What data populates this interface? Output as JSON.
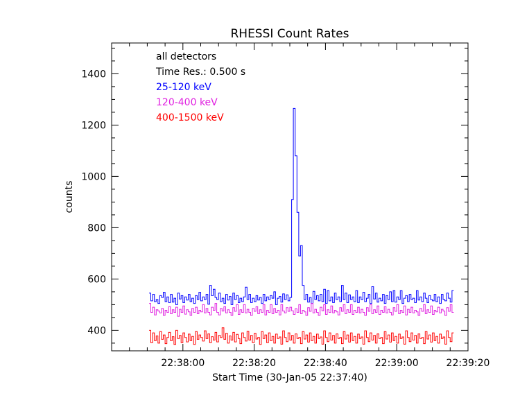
{
  "chart_data": {
    "type": "line",
    "title": "RHESSI Count Rates",
    "xlabel": "Start Time (30-Jan-05 22:37:40)",
    "ylabel": "counts",
    "x_unit": "seconds since 30-Jan-05 22:37:40",
    "xlim": [
      0,
      100
    ],
    "ylim": [
      320,
      1520
    ],
    "x_ticks": [
      {
        "x": 20,
        "label": "22:38:00"
      },
      {
        "x": 40,
        "label": "22:38:20"
      },
      {
        "x": 60,
        "label": "22:38:40"
      },
      {
        "x": 80,
        "label": "22:39:00"
      },
      {
        "x": 100,
        "label": "22:39:20"
      }
    ],
    "y_ticks": [
      400,
      600,
      800,
      1000,
      1200,
      1400
    ],
    "annotations": [
      "all detectors",
      "Time Res.: 0.500 s"
    ],
    "legend_position": "top-left",
    "grid": false,
    "step": 0.5,
    "series": [
      {
        "name": "25-120 keV",
        "color": "#0000ff",
        "x_start": 10.5,
        "values": [
          545,
          515,
          540,
          512,
          520,
          505,
          535,
          528,
          548,
          512,
          530,
          508,
          540,
          510,
          525,
          500,
          545,
          522,
          535,
          508,
          530,
          518,
          540,
          512,
          525,
          505,
          535,
          520,
          548,
          515,
          530,
          520,
          540,
          502,
          575,
          535,
          560,
          528,
          520,
          545,
          512,
          525,
          505,
          540,
          518,
          532,
          500,
          545,
          520,
          535,
          508,
          525,
          512,
          530,
          568,
          520,
          540,
          508,
          525,
          512,
          535,
          518,
          528,
          505,
          540,
          515,
          530,
          520,
          535,
          525,
          550,
          500,
          525,
          532,
          510,
          542,
          520,
          538,
          515,
          528,
          910,
          1265,
          1080,
          860,
          690,
          730,
          575,
          520,
          540,
          510,
          528,
          505,
          552,
          520,
          535,
          515,
          540,
          512,
          560,
          505,
          555,
          515,
          530,
          508,
          545,
          520,
          530,
          512,
          575,
          520,
          545,
          508,
          538,
          520,
          530,
          512,
          555,
          508,
          530,
          520,
          548,
          512,
          525,
          540,
          505,
          570,
          522,
          545,
          510,
          525,
          515,
          540,
          505,
          535,
          520,
          550,
          512,
          555,
          510,
          530,
          520,
          555,
          505,
          525,
          535,
          512,
          540,
          520,
          525,
          508,
          555,
          518,
          530,
          512,
          545,
          525,
          508,
          535,
          520,
          515,
          540,
          512,
          530,
          505,
          540,
          520,
          515,
          545,
          525,
          510,
          555
        ]
      },
      {
        "name": "120-400 keV",
        "color": "#e020e0",
        "x_start": 10.5,
        "values": [
          505,
          470,
          490,
          460,
          480,
          475,
          468,
          485,
          458,
          478,
          470,
          492,
          465,
          480,
          470,
          490,
          455,
          482,
          470,
          495,
          463,
          480,
          472,
          458,
          485,
          470,
          490,
          465,
          478,
          472,
          500,
          468,
          485,
          470,
          460,
          490,
          478,
          505,
          470,
          460,
          485,
          475,
          492,
          468,
          480,
          470,
          458,
          488,
          474,
          500,
          462,
          480,
          470,
          500,
          468,
          482,
          470,
          458,
          485,
          474,
          492,
          465,
          480,
          470,
          500,
          460,
          478,
          470,
          500,
          465,
          485,
          470,
          478,
          460,
          500,
          475,
          468,
          488,
          474,
          490,
          476,
          462,
          484,
          470,
          500,
          465,
          478,
          472,
          458,
          488,
          474,
          505,
          468,
          482,
          470,
          458,
          490,
          476,
          500,
          462,
          480,
          470,
          495,
          468,
          478,
          472,
          460,
          488,
          474,
          500,
          465,
          480,
          470,
          500,
          462,
          478,
          470,
          490,
          468,
          482,
          470,
          458,
          488,
          474,
          500,
          465,
          480,
          470,
          495,
          462,
          478,
          470,
          492,
          468,
          482,
          470,
          460,
          488,
          474,
          500,
          465,
          478,
          470,
          495,
          460,
          482,
          470,
          490,
          468,
          478,
          472,
          458,
          485,
          474,
          500,
          465,
          480,
          470,
          495,
          462,
          478,
          472,
          490,
          468,
          482,
          475,
          458,
          488,
          474,
          500,
          470
        ]
      },
      {
        "name": "400-1500 keV",
        "color": "#ff0000",
        "x_start": 10.5,
        "values": [
          400,
          352,
          390,
          360,
          378,
          350,
          395,
          365,
          382,
          348,
          372,
          392,
          360,
          375,
          345,
          400,
          368,
          380,
          352,
          390,
          372,
          355,
          385,
          360,
          376,
          345,
          395,
          365,
          382,
          372,
          358,
          398,
          368,
          386,
          352,
          375,
          362,
          392,
          355,
          380,
          372,
          410,
          365,
          388,
          350,
          378,
          362,
          392,
          355,
          384,
          368,
          348,
          390,
          372,
          358,
          396,
          362,
          380,
          352,
          388,
          366,
          372,
          345,
          395,
          368,
          382,
          352,
          390,
          360,
          376,
          350,
          385,
          368,
          374,
          346,
          398,
          372,
          356,
          390,
          362,
          380,
          350,
          386,
          368,
          372,
          348,
          395,
          366,
          382,
          354,
          390,
          360,
          376,
          350,
          385,
          368,
          374,
          346,
          398,
          372,
          356,
          390,
          362,
          380,
          350,
          386,
          368,
          372,
          348,
          395,
          366,
          382,
          354,
          390,
          360,
          376,
          350,
          385,
          368,
          374,
          346,
          398,
          372,
          356,
          390,
          362,
          380,
          350,
          386,
          368,
          372,
          348,
          395,
          366,
          382,
          354,
          390,
          360,
          376,
          350,
          385,
          368,
          374,
          346,
          398,
          372,
          356,
          390,
          362,
          380,
          350,
          386,
          368,
          372,
          348,
          395,
          366,
          382,
          354,
          390,
          360,
          376,
          350,
          385,
          368,
          374,
          346,
          398,
          372,
          356,
          390
        ]
      }
    ]
  }
}
